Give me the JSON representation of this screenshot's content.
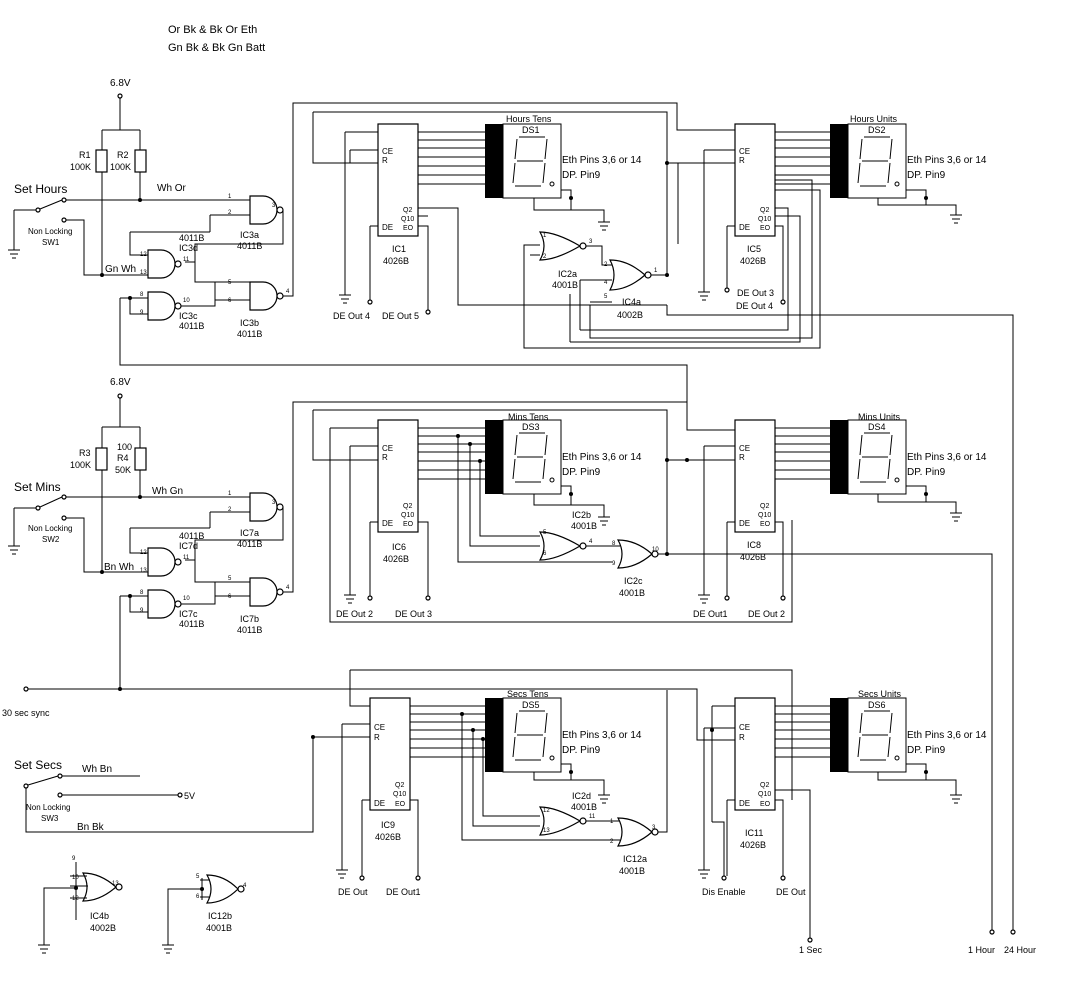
{
  "notes": {
    "line1": "Or Bk & Bk Or Eth",
    "line2": "Gn Bk & Bk Gn Batt"
  },
  "supplies": {
    "v1": "6.8V",
    "v2": "6.8V"
  },
  "switches": {
    "hours": {
      "label": "Set Hours",
      "type": "Non Locking",
      "id": "SW1",
      "wire_top": "Wh Or",
      "wire_bottom": "Gn Wh"
    },
    "mins": {
      "label": "Set Mins",
      "type": "Non Locking",
      "id": "SW2",
      "wire_top": "Wh Gn",
      "wire_bottom": "Bn Wh"
    },
    "secs": {
      "label": "Set Secs",
      "type": "Non Locking",
      "id": "SW3",
      "wire_top": "Wh Bn",
      "wire_bottom": "Bn Bk",
      "supply": "5V"
    }
  },
  "resistors": {
    "r1": {
      "name": "R1",
      "value": "100K"
    },
    "r2": {
      "name": "R2",
      "value": "100K"
    },
    "r3": {
      "name": "R3",
      "value": "100K"
    },
    "r4": {
      "name": "R4",
      "value": "50K",
      "extra": "100"
    }
  },
  "gates": {
    "ic3a": {
      "name": "IC3a",
      "part": "4011B"
    },
    "ic3b": {
      "name": "IC3b",
      "part": "4011B"
    },
    "ic3c": {
      "name": "IC3c",
      "part": "4011B"
    },
    "ic3d": {
      "name": "IC3d",
      "part": "4011B"
    },
    "ic7a": {
      "name": "IC7a",
      "part": "4011B"
    },
    "ic7b": {
      "name": "IC7b",
      "part": "4011B"
    },
    "ic7c": {
      "name": "IC7c",
      "part": "4011B"
    },
    "ic7d": {
      "name": "IC7d",
      "part": "4011B"
    },
    "ic2a": {
      "name": "IC2a",
      "part": "4001B"
    },
    "ic2b": {
      "name": "IC2b",
      "part": "4001B"
    },
    "ic2c": {
      "name": "IC2c",
      "part": "4001B"
    },
    "ic2d": {
      "name": "IC2d",
      "part": "4001B"
    },
    "ic12a": {
      "name": "IC12a",
      "part": "4001B"
    },
    "ic12b": {
      "name": "IC12b",
      "part": "4001B"
    },
    "ic4a": {
      "name": "IC4a",
      "part": "4002B"
    },
    "ic4b": {
      "name": "IC4b",
      "part": "4002B"
    }
  },
  "counters": {
    "ic1": {
      "name": "IC1",
      "part": "4026B"
    },
    "ic5": {
      "name": "IC5",
      "part": "4026B"
    },
    "ic6": {
      "name": "IC6",
      "part": "4026B"
    },
    "ic8": {
      "name": "IC8",
      "part": "4026B"
    },
    "ic9": {
      "name": "IC9",
      "part": "4026B"
    },
    "ic11": {
      "name": "IC11",
      "part": "4026B"
    }
  },
  "counter_pins": {
    "ce": "CE",
    "r": "R",
    "de": "DE",
    "q2": "Q2",
    "q10": "Q10",
    "eo": "EO",
    "segs": [
      "a",
      "b",
      "c",
      "d",
      "e",
      "f",
      "g"
    ]
  },
  "displays": {
    "ds1": {
      "name": "DS1",
      "title": "Hours Tens"
    },
    "ds2": {
      "name": "DS2",
      "title": "Hours Units"
    },
    "ds3": {
      "name": "DS3",
      "title": "Mins Tens"
    },
    "ds4": {
      "name": "DS4",
      "title": "Mins Units"
    },
    "ds5": {
      "name": "DS5",
      "title": "Secs Tens"
    },
    "ds6": {
      "name": "DS6",
      "title": "Secs Units"
    }
  },
  "display_notes": {
    "eth": "Eth Pins 3,6 or 14",
    "dp": "DP. Pin9"
  },
  "de_labels": {
    "de_out_4": "DE Out 4",
    "de_out_5": "DE Out 5",
    "de_out_3": "DE Out 3",
    "de_out_2": "DE Out 2",
    "de_out1": "DE Out1",
    "de_out": "DE Out",
    "dis_enable": "Dis Enable"
  },
  "outputs": {
    "sync": "30 sec sync",
    "one_sec": "1 Sec",
    "one_hour": "1 Hour",
    "twentyfour": "24 Hour"
  }
}
